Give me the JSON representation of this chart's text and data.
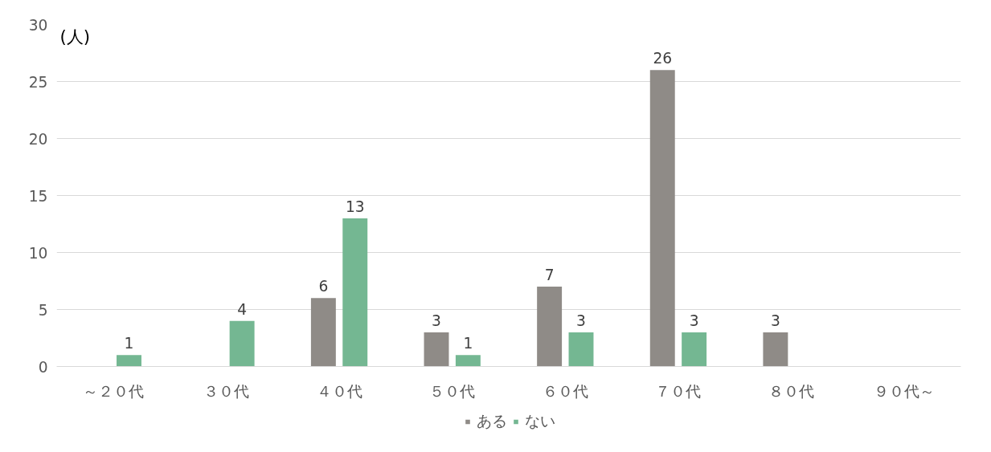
{
  "chart_data": {
    "type": "bar",
    "ylabel": "(人)",
    "categories": [
      "～２０代",
      "３０代",
      "４０代",
      "５０代",
      "６０代",
      "７０代",
      "８０代",
      "９０代～"
    ],
    "series": [
      {
        "name": "ある",
        "color": "#8f8b87",
        "values": [
          0,
          0,
          6,
          3,
          7,
          26,
          3,
          0
        ],
        "value_labels": [
          null,
          null,
          "6",
          "3",
          "7",
          "26",
          "3",
          null
        ]
      },
      {
        "name": "ない",
        "color": "#74b792",
        "values": [
          1,
          4,
          13,
          1,
          3,
          3,
          0,
          0
        ],
        "value_labels": [
          "1",
          "4",
          "13",
          "1",
          "3",
          "3",
          null,
          null
        ]
      }
    ],
    "ylim": [
      0,
      30
    ],
    "yticks": [
      0,
      5,
      10,
      15,
      20,
      25,
      30
    ],
    "grid": "y",
    "legend": "bottom"
  }
}
